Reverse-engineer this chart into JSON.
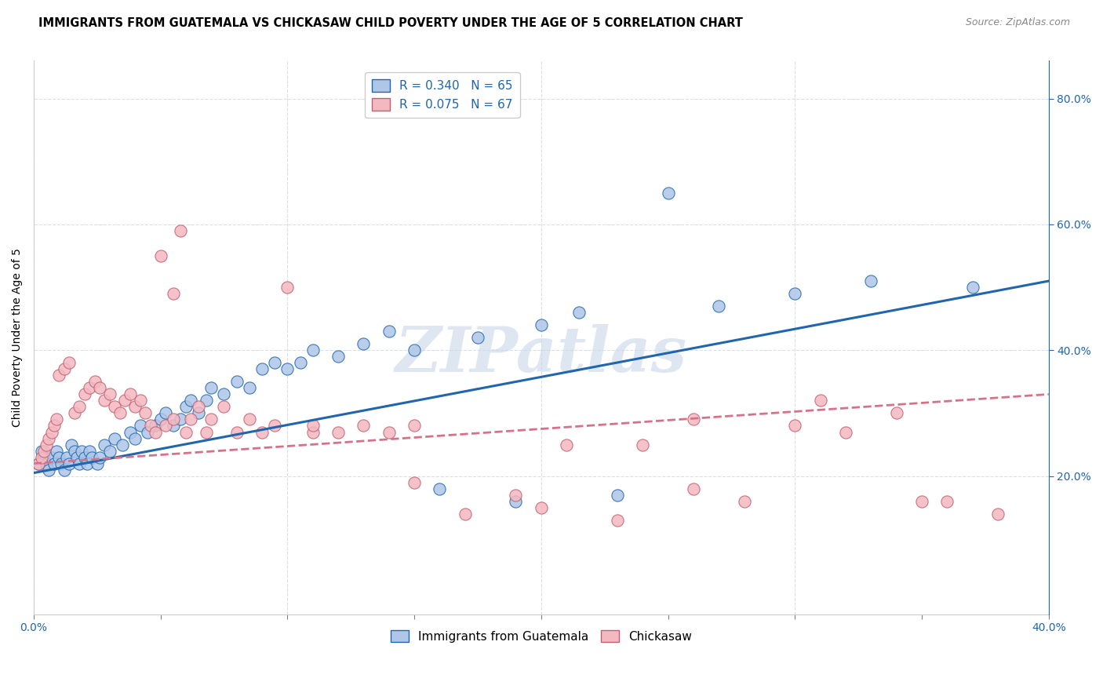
{
  "title": "IMMIGRANTS FROM GUATEMALA VS CHICKASAW CHILD POVERTY UNDER THE AGE OF 5 CORRELATION CHART",
  "source": "Source: ZipAtlas.com",
  "ylabel": "Child Poverty Under the Age of 5",
  "right_yticks_vals": [
    0.2,
    0.4,
    0.6,
    0.8
  ],
  "right_yticks_labels": [
    "20.0%",
    "40.0%",
    "60.0%",
    "80.0%"
  ],
  "xlim": [
    0.0,
    0.4
  ],
  "ylim": [
    -0.02,
    0.86
  ],
  "legend_blue_R": "R = 0.340",
  "legend_blue_N": "N = 65",
  "legend_pink_R": "R = 0.075",
  "legend_pink_N": "N = 67",
  "legend_label_blue": "Immigrants from Guatemala",
  "legend_label_pink": "Chickasaw",
  "blue_color": "#aec6e8",
  "pink_color": "#f4b8c1",
  "blue_line_color": "#2166ac",
  "pink_line_color": "#d4728a",
  "pink_edge_color": "#c06070",
  "watermark": "ZIPatlas",
  "watermark_color": "#c8d8e8",
  "blue_scatter_x": [
    0.002,
    0.003,
    0.004,
    0.005,
    0.006,
    0.007,
    0.008,
    0.009,
    0.01,
    0.011,
    0.012,
    0.013,
    0.014,
    0.015,
    0.016,
    0.017,
    0.018,
    0.019,
    0.02,
    0.021,
    0.022,
    0.023,
    0.025,
    0.026,
    0.028,
    0.03,
    0.032,
    0.035,
    0.038,
    0.04,
    0.042,
    0.045,
    0.048,
    0.05,
    0.052,
    0.055,
    0.058,
    0.06,
    0.062,
    0.065,
    0.068,
    0.07,
    0.075,
    0.08,
    0.085,
    0.09,
    0.095,
    0.1,
    0.105,
    0.11,
    0.12,
    0.13,
    0.14,
    0.15,
    0.16,
    0.175,
    0.19,
    0.2,
    0.215,
    0.23,
    0.25,
    0.27,
    0.3,
    0.33,
    0.37
  ],
  "blue_scatter_y": [
    0.22,
    0.24,
    0.23,
    0.22,
    0.21,
    0.23,
    0.22,
    0.24,
    0.23,
    0.22,
    0.21,
    0.23,
    0.22,
    0.25,
    0.24,
    0.23,
    0.22,
    0.24,
    0.23,
    0.22,
    0.24,
    0.23,
    0.22,
    0.23,
    0.25,
    0.24,
    0.26,
    0.25,
    0.27,
    0.26,
    0.28,
    0.27,
    0.28,
    0.29,
    0.3,
    0.28,
    0.29,
    0.31,
    0.32,
    0.3,
    0.32,
    0.34,
    0.33,
    0.35,
    0.34,
    0.37,
    0.38,
    0.37,
    0.38,
    0.4,
    0.39,
    0.41,
    0.43,
    0.4,
    0.18,
    0.42,
    0.16,
    0.44,
    0.46,
    0.17,
    0.65,
    0.47,
    0.49,
    0.51,
    0.5
  ],
  "pink_scatter_x": [
    0.002,
    0.003,
    0.004,
    0.005,
    0.006,
    0.007,
    0.008,
    0.009,
    0.01,
    0.012,
    0.014,
    0.016,
    0.018,
    0.02,
    0.022,
    0.024,
    0.026,
    0.028,
    0.03,
    0.032,
    0.034,
    0.036,
    0.038,
    0.04,
    0.042,
    0.044,
    0.046,
    0.048,
    0.05,
    0.052,
    0.055,
    0.058,
    0.06,
    0.062,
    0.065,
    0.068,
    0.07,
    0.075,
    0.08,
    0.085,
    0.09,
    0.095,
    0.1,
    0.11,
    0.12,
    0.13,
    0.14,
    0.15,
    0.17,
    0.19,
    0.21,
    0.23,
    0.26,
    0.28,
    0.3,
    0.32,
    0.34,
    0.36,
    0.055,
    0.11,
    0.15,
    0.2,
    0.24,
    0.26,
    0.31,
    0.35,
    0.38
  ],
  "pink_scatter_y": [
    0.22,
    0.23,
    0.24,
    0.25,
    0.26,
    0.27,
    0.28,
    0.29,
    0.36,
    0.37,
    0.38,
    0.3,
    0.31,
    0.33,
    0.34,
    0.35,
    0.34,
    0.32,
    0.33,
    0.31,
    0.3,
    0.32,
    0.33,
    0.31,
    0.32,
    0.3,
    0.28,
    0.27,
    0.55,
    0.28,
    0.29,
    0.59,
    0.27,
    0.29,
    0.31,
    0.27,
    0.29,
    0.31,
    0.27,
    0.29,
    0.27,
    0.28,
    0.5,
    0.27,
    0.27,
    0.28,
    0.27,
    0.28,
    0.14,
    0.17,
    0.25,
    0.13,
    0.18,
    0.16,
    0.28,
    0.27,
    0.3,
    0.16,
    0.49,
    0.28,
    0.19,
    0.15,
    0.25,
    0.29,
    0.32,
    0.16,
    0.14
  ],
  "blue_trend_x": [
    0.0,
    0.4
  ],
  "blue_trend_y": [
    0.205,
    0.51
  ],
  "pink_trend_x": [
    0.0,
    0.4
  ],
  "pink_trend_y": [
    0.22,
    0.33
  ],
  "grid_color": "#d8dfe8",
  "background_color": "#ffffff",
  "title_fontsize": 10.5,
  "axis_label_fontsize": 10,
  "tick_fontsize": 10
}
